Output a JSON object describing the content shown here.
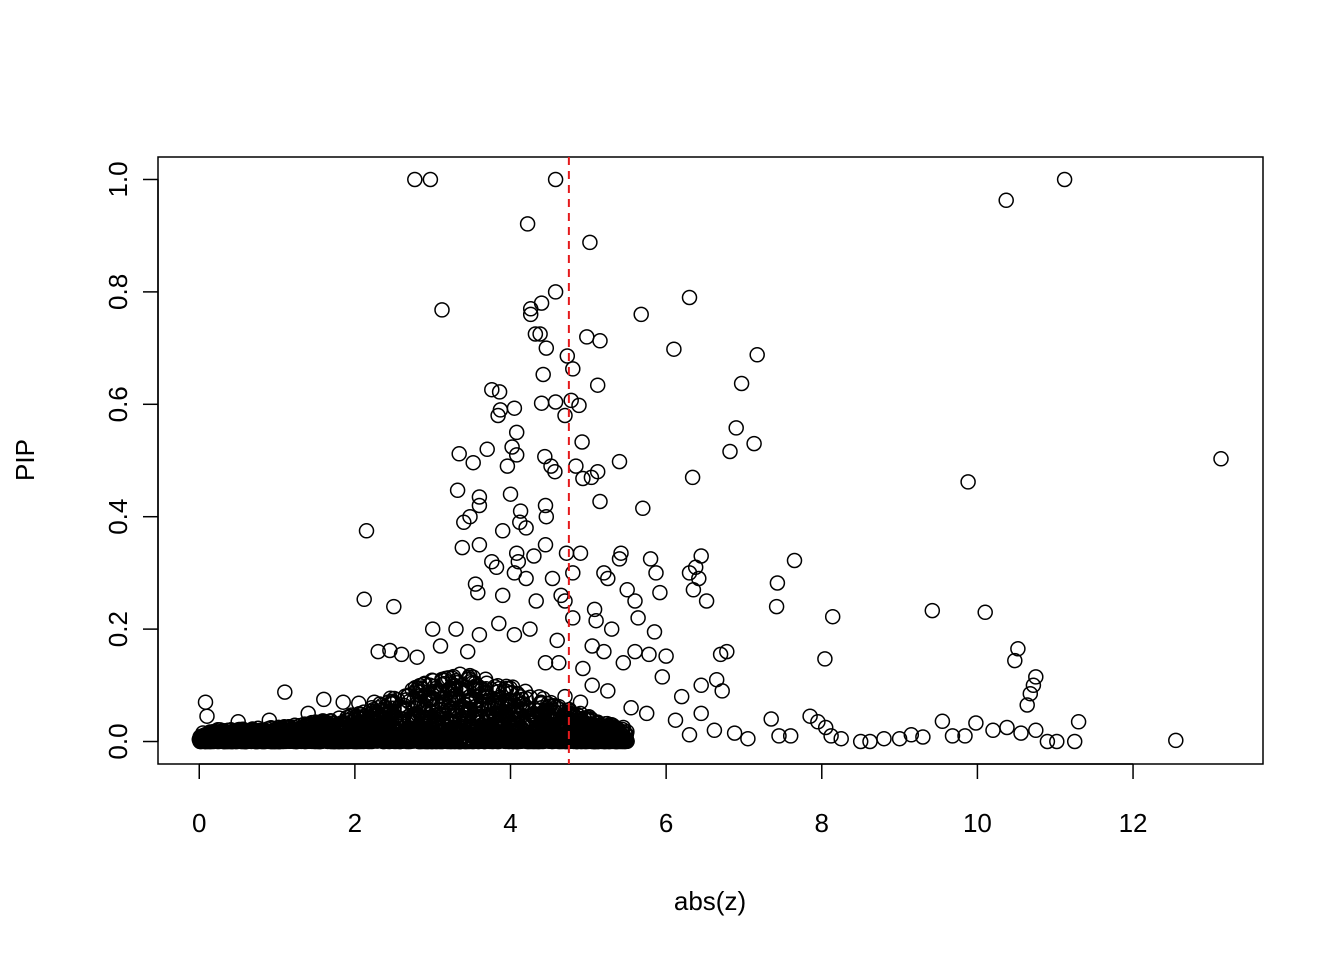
{
  "chart_data": {
    "type": "scatter",
    "title": "",
    "xlabel": "abs(z)",
    "ylabel": "PIP",
    "xlim": [
      -0.53,
      13.67
    ],
    "ylim": [
      -0.04,
      1.04
    ],
    "x_ticks": [
      0,
      2,
      4,
      6,
      8,
      10,
      12
    ],
    "y_ticks": [
      0.0,
      0.2,
      0.4,
      0.6,
      0.8,
      1.0
    ],
    "x_tick_labels": [
      "0",
      "2",
      "4",
      "6",
      "8",
      "10",
      "12"
    ],
    "y_tick_labels": [
      "0.0",
      "0.2",
      "0.4",
      "0.6",
      "0.8",
      "1.0"
    ],
    "grid": false,
    "legend": "none",
    "marker": "open-circle",
    "point_color": "#000000",
    "threshold_line": {
      "x": 4.75,
      "color": "#e41a1c",
      "style": "dashed"
    },
    "notable_points": [
      [
        2.77,
        1.0
      ],
      [
        2.97,
        1.0
      ],
      [
        4.58,
        1.0
      ],
      [
        11.12,
        1.0
      ],
      [
        10.37,
        0.963
      ],
      [
        4.22,
        0.921
      ],
      [
        5.02,
        0.888
      ],
      [
        3.12,
        0.768
      ],
      [
        4.58,
        0.8
      ],
      [
        4.4,
        0.78
      ],
      [
        4.26,
        0.77
      ],
      [
        4.26,
        0.76
      ],
      [
        6.3,
        0.79
      ],
      [
        5.68,
        0.76
      ],
      [
        4.32,
        0.725
      ],
      [
        4.38,
        0.725
      ],
      [
        4.98,
        0.72
      ],
      [
        5.15,
        0.713
      ],
      [
        6.1,
        0.698
      ],
      [
        7.17,
        0.688
      ],
      [
        4.46,
        0.7
      ],
      [
        4.73,
        0.686
      ],
      [
        4.8,
        0.663
      ],
      [
        4.42,
        0.653
      ],
      [
        6.97,
        0.637
      ],
      [
        5.12,
        0.634
      ],
      [
        3.76,
        0.626
      ],
      [
        3.86,
        0.622
      ],
      [
        4.05,
        0.593
      ],
      [
        3.84,
        0.58
      ],
      [
        3.87,
        0.59
      ],
      [
        4.4,
        0.602
      ],
      [
        4.58,
        0.604
      ],
      [
        4.78,
        0.607
      ],
      [
        4.88,
        0.598
      ],
      [
        4.7,
        0.58
      ],
      [
        6.9,
        0.558
      ],
      [
        7.13,
        0.53
      ],
      [
        6.82,
        0.516
      ],
      [
        4.08,
        0.55
      ],
      [
        4.92,
        0.533
      ],
      [
        4.02,
        0.524
      ],
      [
        3.7,
        0.52
      ],
      [
        3.34,
        0.512
      ],
      [
        4.08,
        0.51
      ],
      [
        4.44,
        0.507
      ],
      [
        3.52,
        0.496
      ],
      [
        4.52,
        0.49
      ],
      [
        3.96,
        0.49
      ],
      [
        4.84,
        0.49
      ],
      [
        5.4,
        0.498
      ],
      [
        4.57,
        0.48
      ],
      [
        5.12,
        0.48
      ],
      [
        5.04,
        0.47
      ],
      [
        4.93,
        0.468
      ],
      [
        6.34,
        0.47
      ],
      [
        13.13,
        0.503
      ],
      [
        9.88,
        0.462
      ],
      [
        3.32,
        0.447
      ],
      [
        3.6,
        0.435
      ],
      [
        3.6,
        0.42
      ],
      [
        4.0,
        0.44
      ],
      [
        4.45,
        0.42
      ],
      [
        4.13,
        0.41
      ],
      [
        5.15,
        0.427
      ],
      [
        5.7,
        0.415
      ],
      [
        3.4,
        0.39
      ],
      [
        3.48,
        0.4
      ],
      [
        4.12,
        0.39
      ],
      [
        4.2,
        0.38
      ],
      [
        3.9,
        0.375
      ],
      [
        4.46,
        0.4
      ],
      [
        2.15,
        0.375
      ],
      [
        3.38,
        0.345
      ],
      [
        3.6,
        0.35
      ],
      [
        4.08,
        0.335
      ],
      [
        4.3,
        0.33
      ],
      [
        4.45,
        0.35
      ],
      [
        4.72,
        0.335
      ],
      [
        3.76,
        0.32
      ],
      [
        3.82,
        0.31
      ],
      [
        4.05,
        0.3
      ],
      [
        4.1,
        0.32
      ],
      [
        4.2,
        0.29
      ],
      [
        4.54,
        0.29
      ],
      [
        4.9,
        0.335
      ],
      [
        5.42,
        0.335
      ],
      [
        5.4,
        0.325
      ],
      [
        5.8,
        0.325
      ],
      [
        5.87,
        0.3
      ],
      [
        6.45,
        0.33
      ],
      [
        6.3,
        0.3
      ],
      [
        6.38,
        0.31
      ],
      [
        6.42,
        0.29
      ],
      [
        7.65,
        0.322
      ],
      [
        7.43,
        0.282
      ],
      [
        4.8,
        0.3
      ],
      [
        5.2,
        0.3
      ],
      [
        5.25,
        0.29
      ],
      [
        5.5,
        0.27
      ],
      [
        5.6,
        0.25
      ],
      [
        5.92,
        0.265
      ],
      [
        6.35,
        0.27
      ],
      [
        6.52,
        0.25
      ],
      [
        7.42,
        0.24
      ],
      [
        9.42,
        0.233
      ],
      [
        10.1,
        0.23
      ],
      [
        8.14,
        0.222
      ],
      [
        2.12,
        0.253
      ],
      [
        2.5,
        0.24
      ],
      [
        3.55,
        0.28
      ],
      [
        3.58,
        0.265
      ],
      [
        3.9,
        0.26
      ],
      [
        4.33,
        0.25
      ],
      [
        4.65,
        0.26
      ],
      [
        4.7,
        0.25
      ],
      [
        5.08,
        0.235
      ],
      [
        5.64,
        0.22
      ],
      [
        5.85,
        0.195
      ],
      [
        4.8,
        0.22
      ],
      [
        5.1,
        0.215
      ],
      [
        5.3,
        0.2
      ],
      [
        3.0,
        0.2
      ],
      [
        3.3,
        0.2
      ],
      [
        3.6,
        0.19
      ],
      [
        3.85,
        0.21
      ],
      [
        4.05,
        0.19
      ],
      [
        4.25,
        0.2
      ],
      [
        4.6,
        0.18
      ],
      [
        10.52,
        0.165
      ],
      [
        10.48,
        0.144
      ],
      [
        8.04,
        0.147
      ],
      [
        6.78,
        0.16
      ],
      [
        6.7,
        0.155
      ],
      [
        5.78,
        0.155
      ],
      [
        6.0,
        0.152
      ],
      [
        5.6,
        0.16
      ],
      [
        5.05,
        0.17
      ],
      [
        5.2,
        0.16
      ],
      [
        5.45,
        0.14
      ],
      [
        4.93,
        0.13
      ],
      [
        2.3,
        0.16
      ],
      [
        2.45,
        0.162
      ],
      [
        2.6,
        0.155
      ],
      [
        2.8,
        0.15
      ],
      [
        3.1,
        0.17
      ],
      [
        3.45,
        0.16
      ],
      [
        4.45,
        0.14
      ],
      [
        4.62,
        0.14
      ],
      [
        10.75,
        0.115
      ],
      [
        10.72,
        0.1
      ],
      [
        10.68,
        0.085
      ],
      [
        10.64,
        0.065
      ],
      [
        6.65,
        0.11
      ],
      [
        6.72,
        0.09
      ],
      [
        6.45,
        0.1
      ],
      [
        6.2,
        0.08
      ],
      [
        5.95,
        0.115
      ],
      [
        5.05,
        0.1
      ],
      [
        5.25,
        0.09
      ],
      [
        4.7,
        0.08
      ],
      [
        4.9,
        0.07
      ],
      [
        1.1,
        0.088
      ],
      [
        0.08,
        0.07
      ],
      [
        1.6,
        0.075
      ],
      [
        1.85,
        0.07
      ],
      [
        2.05,
        0.068
      ],
      [
        2.25,
        0.07
      ],
      [
        5.55,
        0.06
      ],
      [
        5.75,
        0.05
      ],
      [
        6.12,
        0.038
      ],
      [
        6.3,
        0.012
      ],
      [
        6.45,
        0.05
      ],
      [
        6.62,
        0.02
      ],
      [
        6.88,
        0.015
      ],
      [
        7.05,
        0.005
      ],
      [
        7.35,
        0.04
      ],
      [
        7.45,
        0.01
      ],
      [
        7.6,
        0.01
      ],
      [
        7.85,
        0.045
      ],
      [
        7.95,
        0.035
      ],
      [
        8.05,
        0.025
      ],
      [
        8.12,
        0.01
      ],
      [
        8.25,
        0.005
      ],
      [
        8.5,
        0.0
      ],
      [
        8.62,
        0.0
      ],
      [
        8.8,
        0.005
      ],
      [
        9.0,
        0.005
      ],
      [
        9.15,
        0.012
      ],
      [
        9.3,
        0.008
      ],
      [
        9.55,
        0.036
      ],
      [
        9.68,
        0.01
      ],
      [
        9.84,
        0.01
      ],
      [
        9.98,
        0.033
      ],
      [
        10.2,
        0.02
      ],
      [
        10.38,
        0.025
      ],
      [
        10.56,
        0.015
      ],
      [
        10.75,
        0.02
      ],
      [
        10.9,
        0.0
      ],
      [
        11.02,
        0.0
      ],
      [
        11.25,
        0.0
      ],
      [
        11.3,
        0.035
      ],
      [
        12.55,
        0.002
      ],
      [
        0.1,
        0.045
      ],
      [
        0.5,
        0.035
      ],
      [
        0.9,
        0.038
      ],
      [
        1.4,
        0.05
      ],
      [
        2.0,
        0.04
      ],
      [
        2.6,
        0.055
      ],
      [
        3.2,
        0.06
      ],
      [
        3.8,
        0.065
      ],
      [
        4.4,
        0.06
      ],
      [
        4.95,
        0.04
      ],
      [
        5.3,
        0.03
      ],
      [
        5.45,
        0.025
      ]
    ],
    "dense_band": {
      "x_range": [
        0,
        5.5
      ],
      "y_min": 0,
      "y_max_profile": [
        [
          0,
          0.02
        ],
        [
          1,
          0.025
        ],
        [
          1.5,
          0.035
        ],
        [
          2,
          0.05
        ],
        [
          2.5,
          0.08
        ],
        [
          3,
          0.11
        ],
        [
          3.3,
          0.125
        ],
        [
          3.7,
          0.11
        ],
        [
          4.2,
          0.09
        ],
        [
          4.7,
          0.06
        ],
        [
          5.2,
          0.035
        ],
        [
          5.5,
          0.02
        ]
      ]
    }
  }
}
